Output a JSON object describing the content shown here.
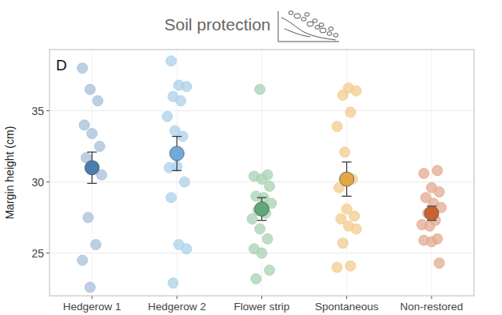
{
  "chart_data": {
    "type": "jitter_mean",
    "title": "Soil protection",
    "annotations": [
      "D"
    ],
    "y_label": "Margin height (cm)",
    "categories": [
      "Hedgerow 1",
      "Hedgerow 2",
      "Flower strip",
      "Spontaneous",
      "Non-restored"
    ],
    "ylim": [
      22,
      39.3
    ],
    "yticks": [
      25,
      30,
      35
    ],
    "grid": true,
    "series": [
      {
        "type": "scatter",
        "colors": [
          "#a7bfd8",
          "#acd0ea",
          "#a8d1b3",
          "#f2cc8e",
          "#e3a98f"
        ],
        "values": [
          [
            38.0,
            36.5,
            35.7,
            34.0,
            33.4,
            32.5,
            31.7,
            31.1,
            30.5,
            27.5,
            25.6,
            24.5,
            22.6
          ],
          [
            38.5,
            36.8,
            36.7,
            36.0,
            35.7,
            34.6,
            33.6,
            33.2,
            31.0,
            31.1,
            30.0,
            28.9,
            25.6,
            25.3,
            22.9
          ],
          [
            36.5,
            30.5,
            30.4,
            30.2,
            29.7,
            29.0,
            28.9,
            28.5,
            28.0,
            27.8,
            27.4,
            26.7,
            26.0,
            25.3,
            25.0,
            23.8,
            23.2
          ],
          [
            36.6,
            36.4,
            36.1,
            34.9,
            33.9,
            32.1,
            30.2,
            29.6,
            28.1,
            27.6,
            27.4,
            26.9,
            26.7,
            25.7,
            24.1,
            24.0
          ],
          [
            30.8,
            30.6,
            29.6,
            29.3,
            28.9,
            28.5,
            28.2,
            27.8,
            27.3,
            27.0,
            26.9,
            26.0,
            25.9,
            25.8,
            24.3
          ]
        ]
      },
      {
        "type": "mean",
        "colors": [
          "#4a7cad",
          "#6eabdc",
          "#5fa877",
          "#e3a744",
          "#c9622f"
        ],
        "values": [
          31.0,
          32.0,
          28.1,
          30.2,
          27.8
        ],
        "errors": [
          1.1,
          1.2,
          0.8,
          1.2,
          0.5
        ]
      }
    ]
  }
}
